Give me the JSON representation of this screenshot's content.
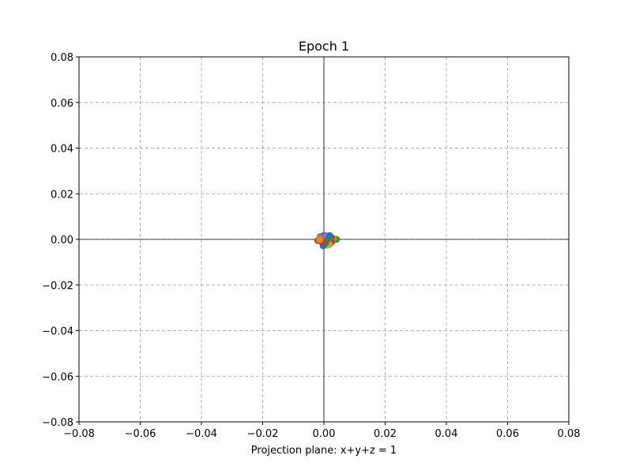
{
  "chart_data": {
    "type": "scatter",
    "title": "Epoch 1",
    "xlabel": "Projection plane: x+y+z = 1",
    "ylabel": "",
    "xlim": [
      -0.08,
      0.08
    ],
    "ylim": [
      -0.08,
      0.08
    ],
    "xticks": [
      -0.08,
      -0.06,
      -0.04,
      -0.02,
      0.0,
      0.02,
      0.04,
      0.06,
      0.08
    ],
    "yticks": [
      -0.08,
      -0.06,
      -0.04,
      -0.02,
      0.0,
      0.02,
      0.04,
      0.06,
      0.08
    ],
    "xtick_labels": [
      "−0.08",
      "−0.06",
      "−0.04",
      "−0.02",
      "0.00",
      "0.02",
      "0.04",
      "0.06",
      "0.08"
    ],
    "ytick_labels": [
      "−0.08",
      "−0.06",
      "−0.04",
      "−0.02",
      "0.00",
      "0.02",
      "0.04",
      "0.06",
      "0.08"
    ],
    "grid": true,
    "axis_lines_at_zero": true,
    "points": [
      {
        "x": 0.0041,
        "y": 0.0,
        "color": "#2ca02c"
      },
      {
        "x": 0.003,
        "y": 0.0004,
        "color": "#ff7f0e"
      },
      {
        "x": -0.002,
        "y": -0.0005,
        "color": "#8c564b"
      },
      {
        "x": -0.0012,
        "y": 0.0012,
        "color": "#7f7f7f"
      },
      {
        "x": 0.0001,
        "y": 0.0017,
        "color": "#1f77b4"
      },
      {
        "x": 0.0008,
        "y": 0.0015,
        "color": "#9467bd"
      },
      {
        "x": 0.0016,
        "y": 0.0012,
        "color": "#e377c2"
      },
      {
        "x": 0.0024,
        "y": 0.0008,
        "color": "#d62728"
      },
      {
        "x": 0.0019,
        "y": -0.0004,
        "color": "#bcbd22"
      },
      {
        "x": 0.0025,
        "y": -0.0012,
        "color": "#8c564b"
      },
      {
        "x": 0.0018,
        "y": -0.0022,
        "color": "#ff7f0e"
      },
      {
        "x": 0.0012,
        "y": -0.0025,
        "color": "#bcbd22"
      },
      {
        "x": 0.0008,
        "y": -0.0018,
        "color": "#17becf"
      },
      {
        "x": -0.0002,
        "y": -0.0028,
        "color": "#1f77b4"
      },
      {
        "x": -0.0008,
        "y": -0.001,
        "color": "#d62728"
      },
      {
        "x": 0.0003,
        "y": 0.0002,
        "color": "#7f7f7f"
      },
      {
        "x": 0.001,
        "y": -0.0006,
        "color": "#e377c2"
      },
      {
        "x": -0.0005,
        "y": 0.0006,
        "color": "#9467bd"
      },
      {
        "x": 0.0014,
        "y": 0.0004,
        "color": "#2ca02c"
      },
      {
        "x": 0.0006,
        "y": -0.0013,
        "color": "#8c564b"
      },
      {
        "x": 0.0019,
        "y": 0.0016,
        "color": "#1f77b4"
      },
      {
        "x": -0.0014,
        "y": -0.0002,
        "color": "#ff7f0e"
      }
    ]
  }
}
